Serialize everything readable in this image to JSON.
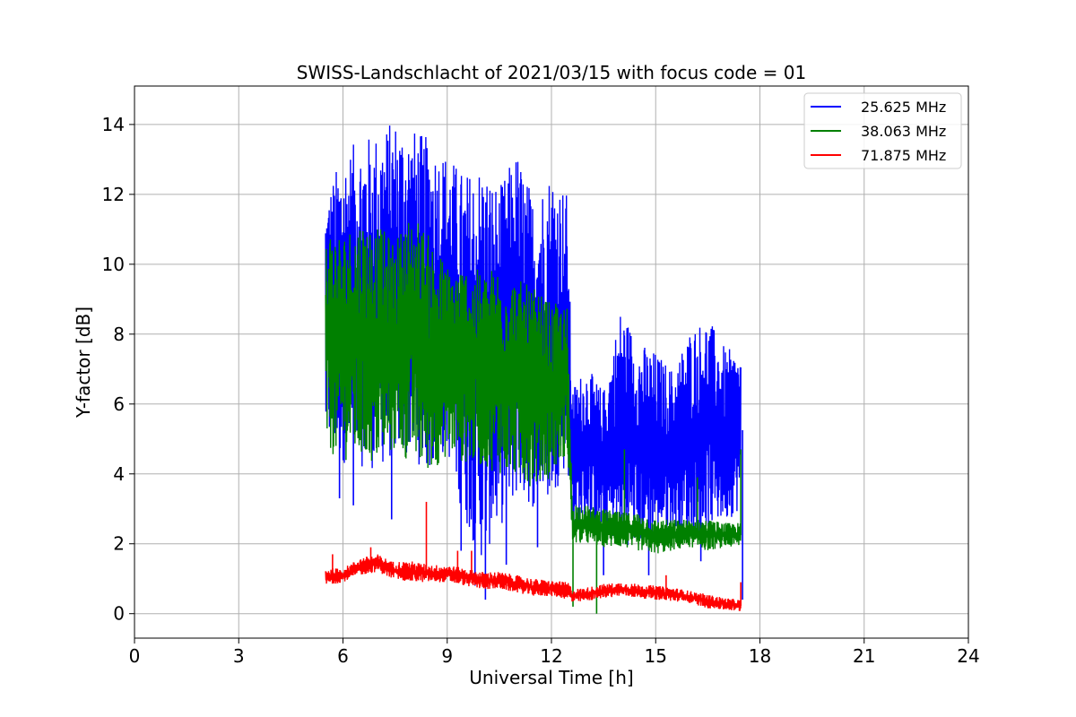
{
  "chart_data": {
    "type": "line",
    "title": "SWISS-Landschlacht of 2021/03/15 with focus code = 01",
    "xlabel": "Universal Time [h]",
    "ylabel": "Y-factor [dB]",
    "xlim": [
      0,
      24
    ],
    "ylim": [
      -0.7,
      15.1
    ],
    "xticks": [
      0,
      3,
      6,
      9,
      12,
      15,
      18,
      21,
      24
    ],
    "yticks": [
      0,
      2,
      4,
      6,
      8,
      10,
      12,
      14
    ],
    "grid": true,
    "legend_position": "top-right",
    "series": [
      {
        "name": "25.625 MHz",
        "color": "#0000ff",
        "min_envelope": [
          [
            5.5,
            4.8
          ],
          [
            6.0,
            4.3
          ],
          [
            6.5,
            4.2
          ],
          [
            7.0,
            4.1
          ],
          [
            7.5,
            4.5
          ],
          [
            8.0,
            4.4
          ],
          [
            8.5,
            4.0
          ],
          [
            9.0,
            4.6
          ],
          [
            9.5,
            2.6
          ],
          [
            10.0,
            1.5
          ],
          [
            10.5,
            2.4
          ],
          [
            11.0,
            3.3
          ],
          [
            11.5,
            3.0
          ],
          [
            12.0,
            3.2
          ],
          [
            12.45,
            4.3
          ],
          [
            12.6,
            2.5
          ],
          [
            13.0,
            2.6
          ],
          [
            13.5,
            2.2
          ],
          [
            14.0,
            2.0
          ],
          [
            14.5,
            1.9
          ],
          [
            15.0,
            2.2
          ],
          [
            15.5,
            2.3
          ],
          [
            16.0,
            2.1
          ],
          [
            16.5,
            2.4
          ],
          [
            17.0,
            2.6
          ],
          [
            17.45,
            3.0
          ]
        ],
        "max_envelope": [
          [
            5.5,
            12.0
          ],
          [
            6.0,
            13.2
          ],
          [
            6.5,
            13.6
          ],
          [
            7.0,
            13.8
          ],
          [
            7.5,
            14.2
          ],
          [
            8.0,
            13.9
          ],
          [
            8.5,
            13.6
          ],
          [
            9.0,
            13.2
          ],
          [
            9.5,
            12.6
          ],
          [
            10.0,
            13.0
          ],
          [
            10.5,
            12.2
          ],
          [
            11.0,
            13.3
          ],
          [
            11.5,
            11.9
          ],
          [
            12.0,
            12.8
          ],
          [
            12.45,
            12.1
          ],
          [
            12.6,
            6.5
          ],
          [
            13.0,
            7.1
          ],
          [
            13.5,
            6.4
          ],
          [
            14.0,
            8.8
          ],
          [
            14.5,
            7.8
          ],
          [
            15.0,
            7.5
          ],
          [
            15.5,
            7.0
          ],
          [
            16.0,
            8.2
          ],
          [
            16.5,
            8.5
          ],
          [
            17.0,
            7.6
          ],
          [
            17.45,
            7.5
          ]
        ],
        "spikes": [
          [
            5.9,
            3.3
          ],
          [
            6.3,
            3.1
          ],
          [
            7.4,
            2.7
          ],
          [
            8.2,
            6.2
          ],
          [
            9.4,
            1.8
          ],
          [
            9.8,
            0.8
          ],
          [
            10.1,
            0.4
          ],
          [
            10.7,
            1.4
          ],
          [
            11.6,
            1.9
          ],
          [
            13.5,
            1.1
          ],
          [
            14.8,
            1.1
          ],
          [
            16.3,
            1.5
          ],
          [
            17.5,
            0.4
          ]
        ]
      },
      {
        "name": "38.063 MHz",
        "color": "#008000",
        "min_envelope": [
          [
            5.5,
            4.6
          ],
          [
            6.0,
            4.4
          ],
          [
            6.5,
            4.3
          ],
          [
            7.0,
            4.2
          ],
          [
            7.5,
            4.6
          ],
          [
            8.0,
            4.2
          ],
          [
            8.5,
            4.0
          ],
          [
            9.0,
            4.5
          ],
          [
            9.5,
            4.3
          ],
          [
            10.0,
            4.2
          ],
          [
            10.5,
            4.0
          ],
          [
            11.0,
            3.8
          ],
          [
            11.5,
            3.6
          ],
          [
            12.0,
            3.9
          ],
          [
            12.45,
            4.6
          ],
          [
            12.6,
            2.0
          ],
          [
            13.0,
            2.0
          ],
          [
            13.5,
            1.9
          ],
          [
            14.0,
            1.9
          ],
          [
            14.5,
            1.8
          ],
          [
            15.0,
            1.7
          ],
          [
            15.5,
            1.8
          ],
          [
            16.0,
            1.9
          ],
          [
            16.5,
            1.8
          ],
          [
            17.0,
            1.9
          ],
          [
            17.45,
            1.9
          ]
        ],
        "max_envelope": [
          [
            5.5,
            11.2
          ],
          [
            6.0,
            10.9
          ],
          [
            6.5,
            11.4
          ],
          [
            7.0,
            11.1
          ],
          [
            7.5,
            10.7
          ],
          [
            8.0,
            11.6
          ],
          [
            8.5,
            10.8
          ],
          [
            9.0,
            10.0
          ],
          [
            9.5,
            10.0
          ],
          [
            10.0,
            9.8
          ],
          [
            10.5,
            10.0
          ],
          [
            11.0,
            9.6
          ],
          [
            11.5,
            9.3
          ],
          [
            12.0,
            8.9
          ],
          [
            12.45,
            8.8
          ],
          [
            12.6,
            3.2
          ],
          [
            13.0,
            3.1
          ],
          [
            13.5,
            3.0
          ],
          [
            14.0,
            2.9
          ],
          [
            14.5,
            2.9
          ],
          [
            15.0,
            2.7
          ],
          [
            15.5,
            2.7
          ],
          [
            16.0,
            2.7
          ],
          [
            16.5,
            2.7
          ],
          [
            17.0,
            2.6
          ],
          [
            17.45,
            2.6
          ]
        ],
        "spikes": [
          [
            12.62,
            0.2
          ],
          [
            13.3,
            0.0
          ],
          [
            14.1,
            4.7
          ],
          [
            16.2,
            3.9
          ],
          [
            17.45,
            4.7
          ]
        ]
      },
      {
        "name": "71.875 MHz",
        "color": "#ff0000",
        "min_envelope": [
          [
            5.5,
            0.8
          ],
          [
            6.0,
            0.9
          ],
          [
            6.5,
            1.1
          ],
          [
            7.0,
            1.2
          ],
          [
            7.4,
            1.0
          ],
          [
            8.0,
            0.9
          ],
          [
            8.5,
            0.9
          ],
          [
            9.0,
            0.9
          ],
          [
            9.5,
            0.8
          ],
          [
            10.0,
            0.7
          ],
          [
            10.5,
            0.7
          ],
          [
            11.0,
            0.6
          ],
          [
            11.5,
            0.5
          ],
          [
            12.0,
            0.5
          ],
          [
            12.5,
            0.4
          ],
          [
            12.6,
            0.3
          ],
          [
            13.0,
            0.35
          ],
          [
            13.5,
            0.45
          ],
          [
            14.0,
            0.5
          ],
          [
            14.5,
            0.45
          ],
          [
            15.0,
            0.4
          ],
          [
            15.5,
            0.35
          ],
          [
            16.0,
            0.3
          ],
          [
            16.5,
            0.15
          ],
          [
            17.0,
            0.1
          ],
          [
            17.45,
            0.05
          ]
        ],
        "max_envelope": [
          [
            5.5,
            1.3
          ],
          [
            6.0,
            1.3
          ],
          [
            6.5,
            1.6
          ],
          [
            7.0,
            1.7
          ],
          [
            7.4,
            1.5
          ],
          [
            8.0,
            1.5
          ],
          [
            8.5,
            1.4
          ],
          [
            9.0,
            1.4
          ],
          [
            9.5,
            1.3
          ],
          [
            10.0,
            1.2
          ],
          [
            10.5,
            1.2
          ],
          [
            11.0,
            1.1
          ],
          [
            11.5,
            1.0
          ],
          [
            12.0,
            0.95
          ],
          [
            12.5,
            0.9
          ],
          [
            12.6,
            0.7
          ],
          [
            13.0,
            0.75
          ],
          [
            13.5,
            0.85
          ],
          [
            14.0,
            0.9
          ],
          [
            14.5,
            0.85
          ],
          [
            15.0,
            0.8
          ],
          [
            15.5,
            0.75
          ],
          [
            16.0,
            0.65
          ],
          [
            16.5,
            0.55
          ],
          [
            17.0,
            0.45
          ],
          [
            17.45,
            0.4
          ]
        ],
        "spikes": [
          [
            5.7,
            1.7
          ],
          [
            6.8,
            1.9
          ],
          [
            8.4,
            3.2
          ],
          [
            9.3,
            1.8
          ],
          [
            9.7,
            1.8
          ],
          [
            15.3,
            1.1
          ],
          [
            17.45,
            0.9
          ]
        ]
      }
    ]
  }
}
